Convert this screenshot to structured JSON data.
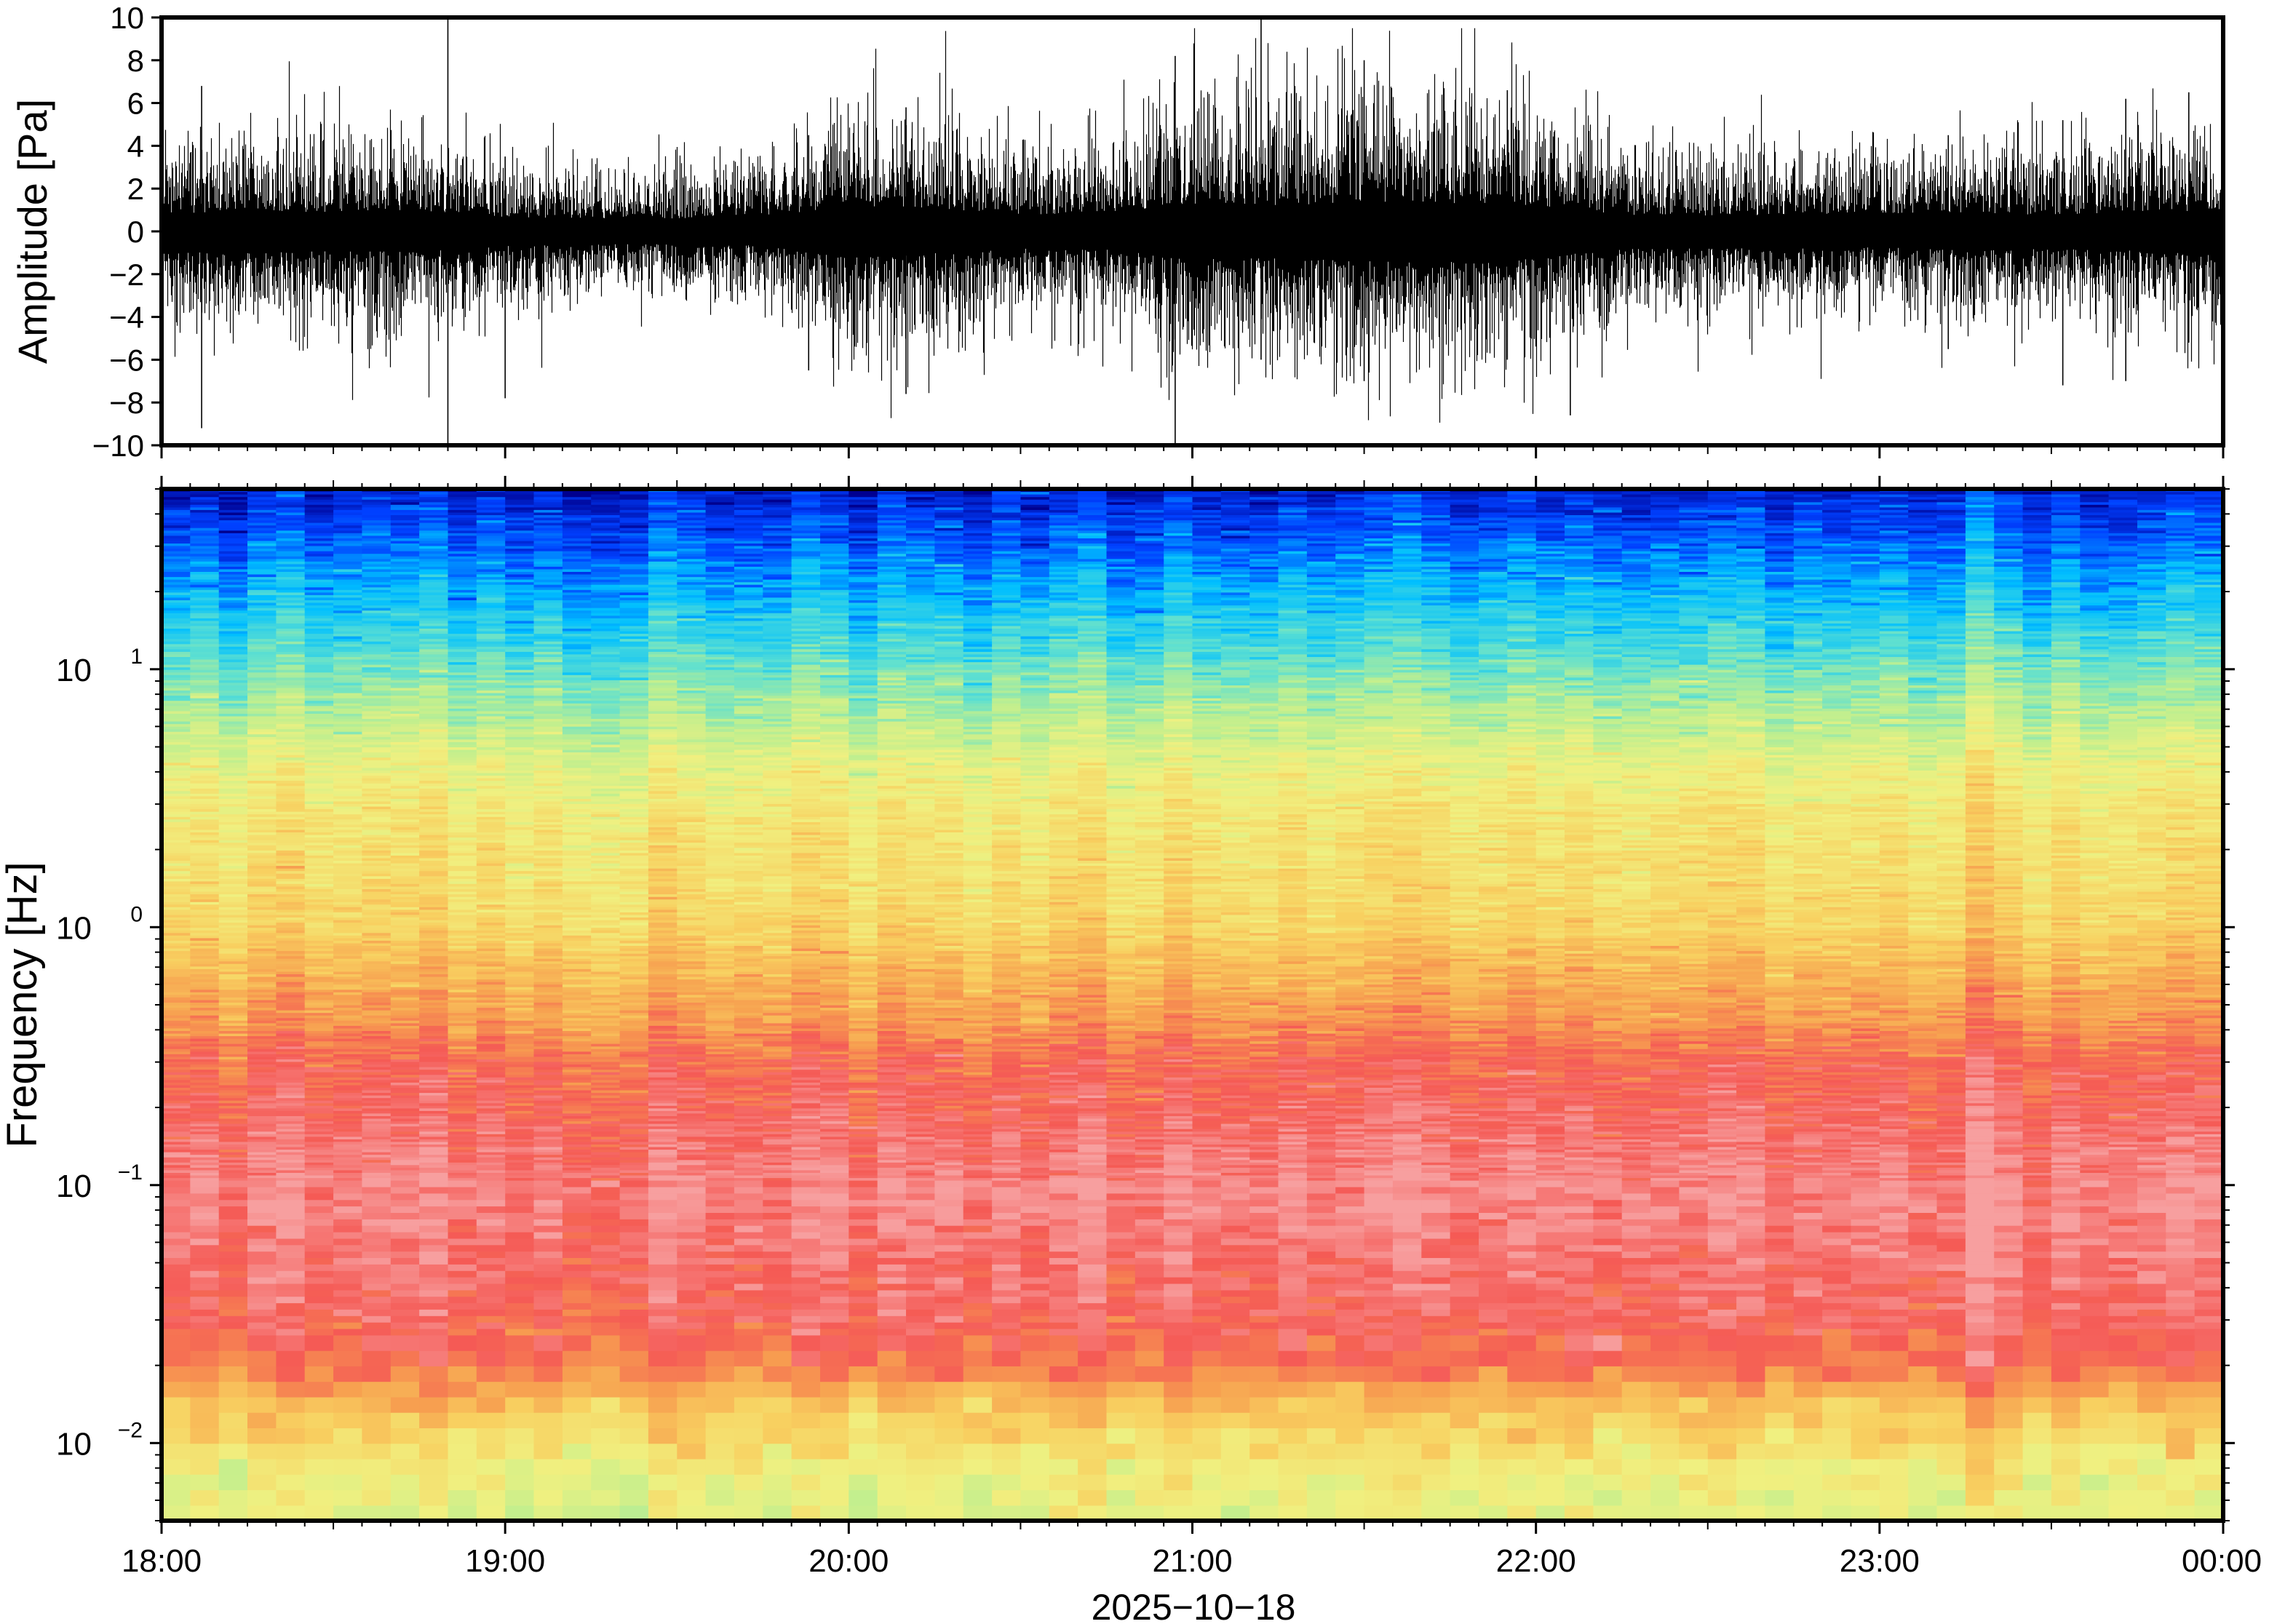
{
  "chart_data": [
    {
      "type": "line",
      "panel": "waveform",
      "ylabel": "Amplitude [Pa]",
      "ylim": [
        -10,
        10
      ],
      "y_ticks": [
        -10,
        -8,
        -6,
        -4,
        -2,
        0,
        2,
        4,
        6,
        8,
        10
      ],
      "y_tick_labels": [
        "−10",
        "−8",
        "−6",
        "−4",
        "−2",
        "0",
        "2",
        "4",
        "6",
        "8",
        "10"
      ],
      "xlim": [
        "18:00",
        "00:00"
      ],
      "envelope": {
        "times_hr": [
          18.0,
          18.25,
          18.5,
          18.75,
          19.0,
          19.25,
          19.5,
          19.75,
          20.0,
          20.25,
          20.5,
          20.75,
          21.0,
          21.25,
          21.5,
          21.75,
          22.0,
          22.25,
          22.5,
          22.75,
          23.0,
          23.25,
          23.5,
          23.75,
          24.0
        ],
        "rms_pa": [
          1.4,
          1.5,
          1.5,
          1.6,
          1.1,
          1.0,
          1.0,
          1.1,
          1.9,
          1.7,
          1.3,
          1.4,
          2.1,
          2.0,
          2.3,
          2.2,
          2.0,
          1.3,
          1.2,
          1.3,
          1.2,
          1.4,
          1.3,
          1.5,
          1.5
        ]
      },
      "spikes": [
        {
          "t": "18:07",
          "max": 6.8,
          "min": -9.2
        },
        {
          "t": "18:50",
          "max": 10,
          "min": -10
        },
        {
          "t": "19:00",
          "max": 3.5,
          "min": -7.8
        },
        {
          "t": "19:53",
          "max": 4.5,
          "min": -6.5
        },
        {
          "t": "20:10",
          "max": 5.8,
          "min": -7.6
        },
        {
          "t": "20:57",
          "max": 8.2,
          "min": -10
        },
        {
          "t": "21:12",
          "max": 10,
          "min": -6.0
        },
        {
          "t": "21:30",
          "max": 8.0,
          "min": -7.0
        },
        {
          "t": "21:55",
          "max": 6.6,
          "min": -6.0
        },
        {
          "t": "22:06",
          "max": 3.2,
          "min": -8.6
        },
        {
          "t": "23:12",
          "max": 4.5,
          "min": -5.5
        },
        {
          "t": "23:32",
          "max": 5.2,
          "min": -7.2
        },
        {
          "t": "23:43",
          "max": 6.2,
          "min": -7.0
        },
        {
          "t": "23:54",
          "max": 6.5,
          "min": -5.2
        }
      ]
    },
    {
      "type": "heatmap",
      "panel": "spectrogram",
      "ylabel": "Frequency [Hz]",
      "yscale": "log",
      "ylim": [
        0.005,
        50
      ],
      "y_ticks": [
        0.01,
        0.1,
        1,
        10
      ],
      "y_tick_labels": [
        {
          "base": "10",
          "exp": "−2"
        },
        {
          "base": "10",
          "exp": "−1"
        },
        {
          "base": "10",
          "exp": "0"
        },
        {
          "base": "10",
          "exp": "1"
        }
      ],
      "xlim": [
        "18:00",
        "00:00"
      ],
      "x_ticks": [
        "18:00",
        "19:00",
        "20:00",
        "21:00",
        "22:00",
        "23:00",
        "00:00"
      ],
      "xlabel": "2025−10−18",
      "colormap": "jet-like (blue low power → red high power)",
      "power_profile": {
        "freqs_hz": [
          0.005,
          0.007,
          0.01,
          0.015,
          0.02,
          0.03,
          0.05,
          0.08,
          0.12,
          0.2,
          0.3,
          0.45,
          0.7,
          1.0,
          1.5,
          2.5,
          4,
          6,
          9,
          13,
          18,
          25,
          35,
          50
        ],
        "relative_level": [
          0.52,
          0.55,
          0.62,
          0.72,
          0.85,
          0.9,
          0.93,
          0.96,
          0.95,
          0.9,
          0.87,
          0.78,
          0.72,
          0.65,
          0.62,
          0.6,
          0.55,
          0.46,
          0.38,
          0.3,
          0.24,
          0.18,
          0.12,
          0.06
        ]
      }
    }
  ],
  "colors": {
    "colormap": [
      "#00008f",
      "#0040ff",
      "#00bfff",
      "#5fe0d0",
      "#bfef8f",
      "#f0f080",
      "#f8d060",
      "#f7a050",
      "#f55a55",
      "#f7a0a0"
    ],
    "frame": "#000000"
  }
}
